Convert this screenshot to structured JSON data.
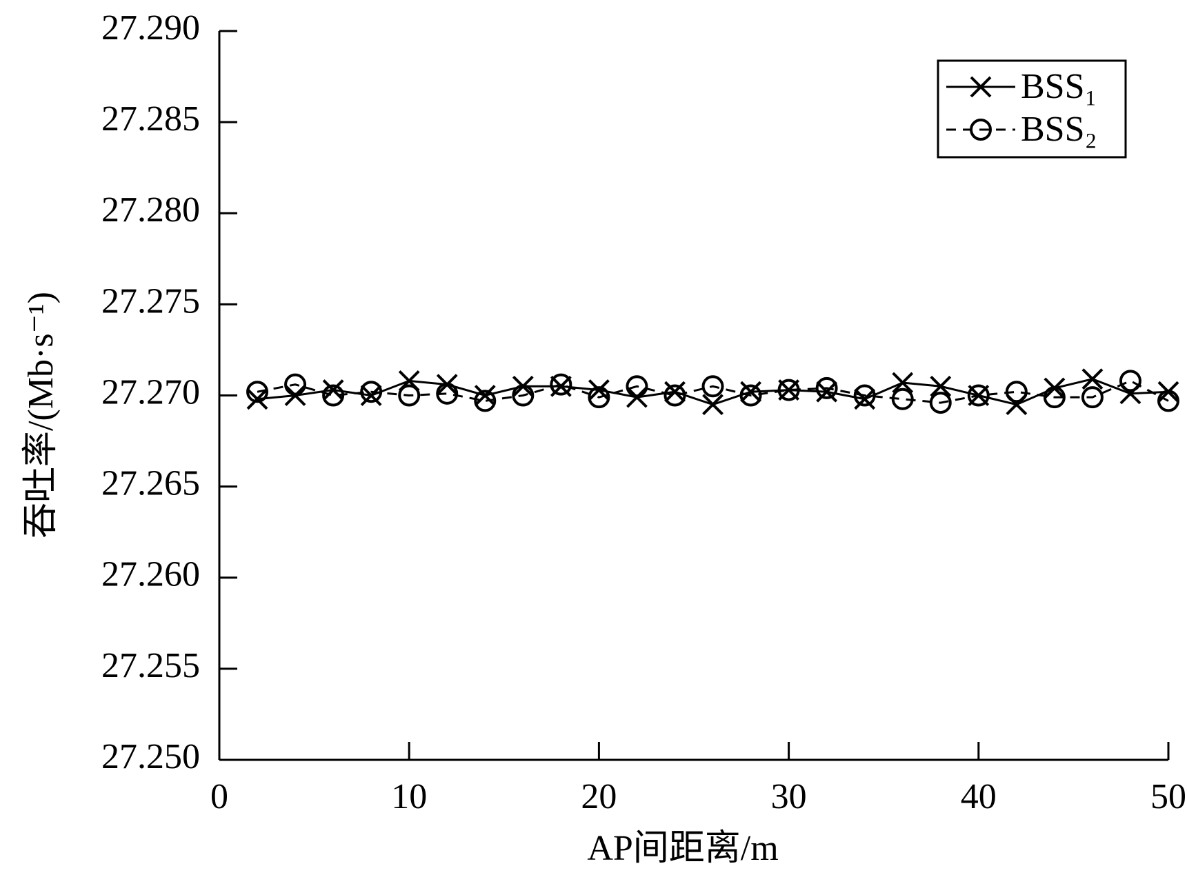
{
  "chart_data": {
    "type": "line",
    "x_label": "AP间距离/m",
    "y_label": "吞吐率/(Mb·s⁻¹)",
    "x": [
      2,
      4,
      6,
      8,
      10,
      12,
      14,
      16,
      18,
      20,
      22,
      24,
      26,
      28,
      30,
      32,
      34,
      36,
      38,
      40,
      42,
      44,
      46,
      48,
      50
    ],
    "series": [
      {
        "name": "BSS₁",
        "color": "#000000",
        "marker": "x",
        "dash": false,
        "values": [
          27.2698,
          27.27,
          27.2703,
          27.27,
          27.2708,
          27.2706,
          27.27,
          27.2705,
          27.2705,
          27.2703,
          27.2699,
          27.2702,
          27.2695,
          27.2702,
          27.2703,
          27.2702,
          27.2698,
          27.2707,
          27.2705,
          27.27,
          27.2695,
          27.2704,
          27.2709,
          27.2701,
          27.2702
        ]
      },
      {
        "name": "BSS₂",
        "color": "#000000",
        "marker": "o",
        "dash": true,
        "values": [
          27.2702,
          27.2706,
          27.27,
          27.2702,
          27.27,
          27.2701,
          27.2697,
          27.27,
          27.2706,
          27.2699,
          27.2705,
          27.27,
          27.2705,
          27.27,
          27.2703,
          27.2704,
          27.27,
          27.2698,
          27.2696,
          27.27,
          27.2702,
          27.2699,
          27.2699,
          27.2708,
          27.2697
        ]
      }
    ],
    "xlim": [
      0,
      50
    ],
    "xticks": [
      0,
      10,
      20,
      30,
      40,
      50
    ],
    "ylim": [
      27.25,
      27.29
    ],
    "yticks": [
      {
        "value": 27.25,
        "label": "27.250"
      },
      27.255,
      {
        "value": 27.26,
        "label": "27.260"
      },
      27.265,
      {
        "value": 27.27,
        "label": "27.270"
      },
      27.275,
      {
        "value": 27.28,
        "label": "27.280"
      },
      27.285,
      {
        "value": 27.29,
        "label": "27.290"
      }
    ],
    "grid": false,
    "legend": "upper right"
  }
}
